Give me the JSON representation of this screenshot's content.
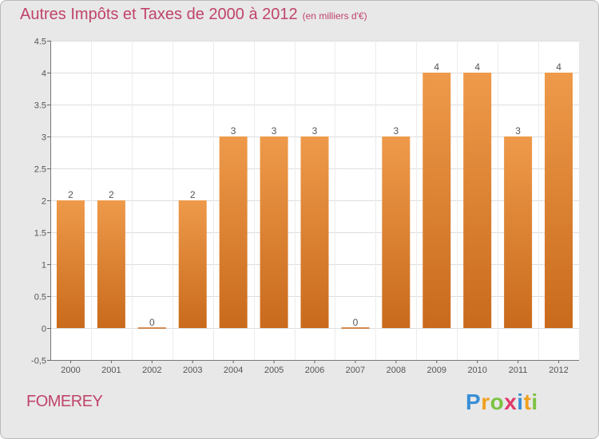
{
  "title": "Autres Impôts et Taxes de 2000 à 2012",
  "unit": "(en milliers d'€)",
  "place": "FOMEREY",
  "logo": {
    "letters": [
      "P",
      "r",
      "o",
      "x",
      "i",
      "t",
      "i"
    ],
    "colors": [
      "#3a8fd6",
      "#f0a020",
      "#7cc242",
      "#e03a6a",
      "#3a8fd6",
      "#f0a020",
      "#7cc242"
    ]
  },
  "chart_data": {
    "type": "bar",
    "title": "Autres Impôts et Taxes de 2000 à 2012",
    "unit": "(en milliers d'€)",
    "categories": [
      "2000",
      "2001",
      "2002",
      "2003",
      "2004",
      "2005",
      "2006",
      "2007",
      "2008",
      "2009",
      "2010",
      "2011",
      "2012"
    ],
    "values": [
      2,
      2,
      0,
      2,
      3,
      3,
      3,
      0,
      3,
      4,
      4,
      3,
      4
    ],
    "ylim": [
      -0.5,
      4.5
    ],
    "yticks": [
      "-0,5",
      "0",
      "0.5",
      "1",
      "1.5",
      "2",
      "2.5",
      "3",
      "3.5",
      "4",
      "4.5"
    ],
    "grid": true,
    "bar_color": "#ee9a4a",
    "bar_color_dark": "#c96a1c"
  }
}
